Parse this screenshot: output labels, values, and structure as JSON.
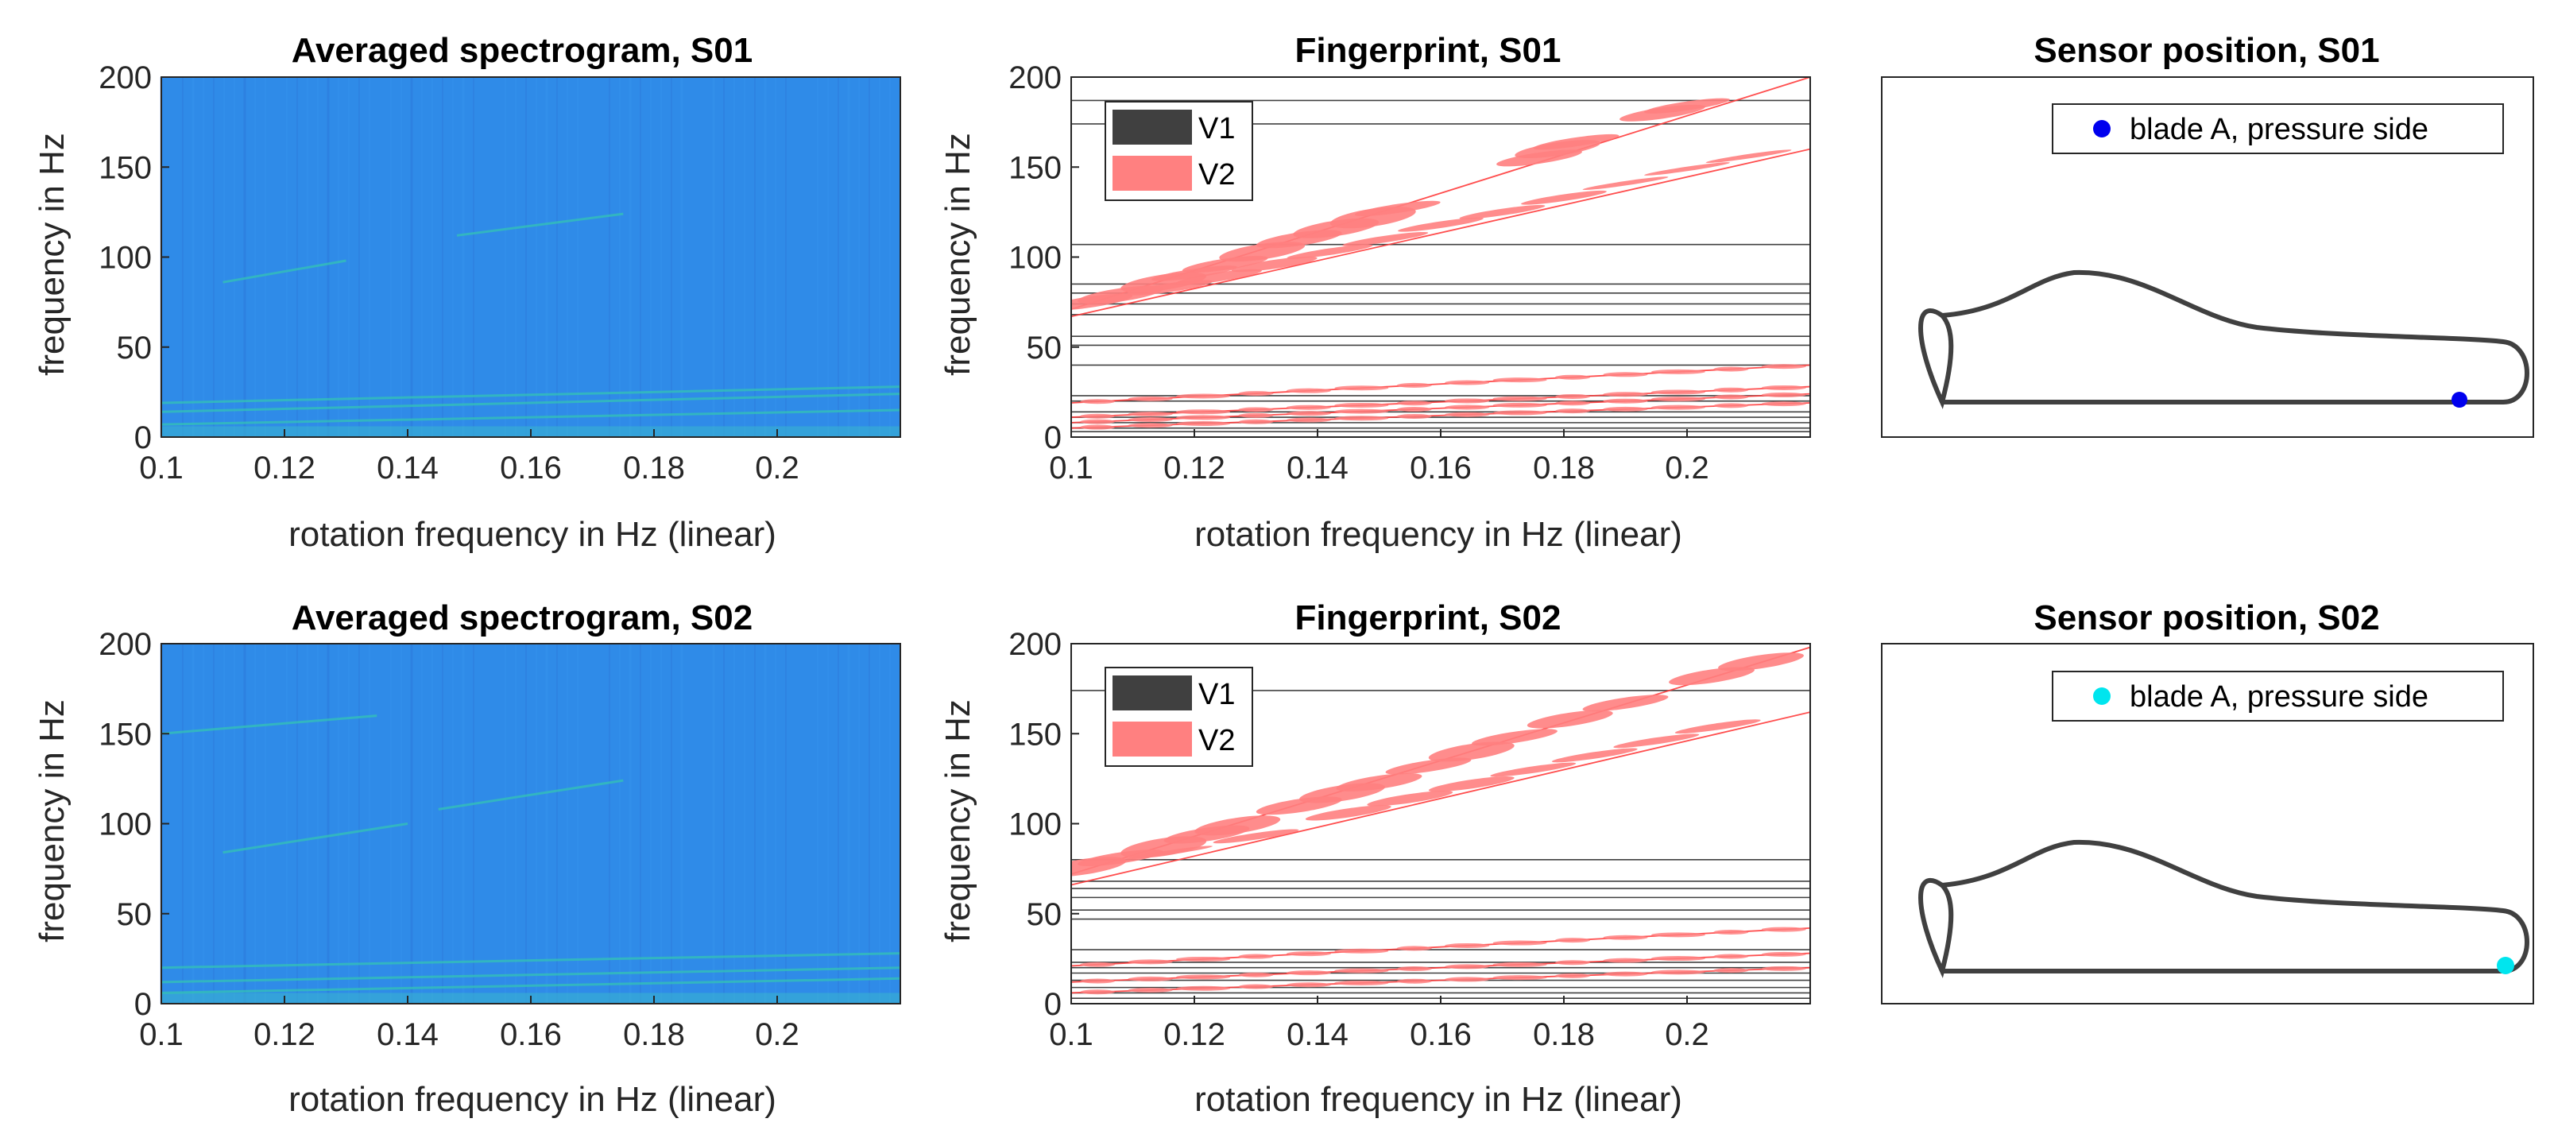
{
  "figure": {
    "colors": {
      "spectrogram_bg": "#2f8be8",
      "spectrogram_line": "#33c4b4",
      "axis": "#262626",
      "v1": "#404040",
      "v2": "#ff8080",
      "v2_line": "#ff3b3b",
      "blade": "#404040",
      "sensor_s01": "#0000ee",
      "sensor_s02": "#00e5ee"
    }
  },
  "chart_data": [
    {
      "id": "spec-s01",
      "type": "heatmap",
      "title": "Averaged spectrogram, S01",
      "xlabel": "rotation frequency in Hz (linear)",
      "ylabel": "frequency in Hz",
      "xlim": [
        0.1,
        0.22
      ],
      "ylim": [
        0,
        200
      ],
      "xticks": [
        "0.1",
        "0.12",
        "0.14",
        "0.16",
        "0.18",
        "0.2"
      ],
      "xtick_values": [
        0.1,
        0.12,
        0.14,
        0.16,
        0.18,
        0.2
      ],
      "yticks": [
        "0",
        "50",
        "100",
        "150",
        "200"
      ],
      "ytick_values": [
        0,
        50,
        100,
        150,
        200
      ],
      "faint_lines": [
        {
          "x": [
            0.1,
            0.22
          ],
          "y": [
            7,
            15
          ]
        },
        {
          "x": [
            0.1,
            0.22
          ],
          "y": [
            14,
            24
          ]
        },
        {
          "x": [
            0.1,
            0.22
          ],
          "y": [
            19,
            28
          ]
        },
        {
          "x": [
            0.11,
            0.13
          ],
          "y": [
            86,
            98
          ]
        },
        {
          "x": [
            0.148,
            0.175
          ],
          "y": [
            112,
            124
          ]
        }
      ]
    },
    {
      "id": "fp-s01",
      "type": "scatter",
      "title": "Fingerprint, S01",
      "xlabel": "rotation frequency in Hz (linear)",
      "ylabel": "frequency in Hz",
      "xlim": [
        0.1,
        0.22
      ],
      "ylim": [
        0,
        200
      ],
      "xticks": [
        "0.1",
        "0.12",
        "0.14",
        "0.16",
        "0.18",
        "0.2"
      ],
      "xtick_values": [
        0.1,
        0.12,
        0.14,
        0.16,
        0.18,
        0.2
      ],
      "yticks": [
        "0",
        "50",
        "100",
        "150",
        "200"
      ],
      "ytick_values": [
        0,
        50,
        100,
        150,
        200
      ],
      "legend": [
        "V1",
        "V2"
      ],
      "v1_frequencies": [
        187,
        174,
        107,
        85,
        80,
        74,
        68,
        56,
        51,
        40,
        23,
        20,
        14,
        11,
        8,
        5,
        3
      ],
      "v2_lines": [
        {
          "x": [
            0.1,
            0.22
          ],
          "y": [
            71,
            200
          ]
        },
        {
          "x": [
            0.1,
            0.22
          ],
          "y": [
            67,
            160
          ]
        },
        {
          "x": [
            0.1,
            0.22
          ],
          "y": [
            19,
            40
          ]
        },
        {
          "x": [
            0.1,
            0.22
          ],
          "y": [
            11,
            28
          ]
        },
        {
          "x": [
            0.1,
            0.22
          ],
          "y": [
            8,
            24
          ]
        },
        {
          "x": [
            0.1,
            0.22
          ],
          "y": [
            5,
            19
          ]
        }
      ],
      "v2_blobs": [
        {
          "x": 0.103,
          "y": 75,
          "w": 5
        },
        {
          "x": 0.108,
          "y": 79,
          "w": 6
        },
        {
          "x": 0.115,
          "y": 86,
          "w": 7
        },
        {
          "x": 0.12,
          "y": 91,
          "w": 4
        },
        {
          "x": 0.125,
          "y": 96,
          "w": 5
        },
        {
          "x": 0.131,
          "y": 103,
          "w": 7
        },
        {
          "x": 0.137,
          "y": 110,
          "w": 6
        },
        {
          "x": 0.143,
          "y": 116,
          "w": 7
        },
        {
          "x": 0.149,
          "y": 122,
          "w": 8
        },
        {
          "x": 0.153,
          "y": 127,
          "w": 4
        },
        {
          "x": 0.176,
          "y": 155,
          "w": 5
        },
        {
          "x": 0.179,
          "y": 160,
          "w": 6
        },
        {
          "x": 0.182,
          "y": 164,
          "w": 4
        },
        {
          "x": 0.196,
          "y": 180,
          "w": 5
        },
        {
          "x": 0.2,
          "y": 184,
          "w": 4
        },
        {
          "x": 0.116,
          "y": 83,
          "w": 4
        },
        {
          "x": 0.124,
          "y": 89,
          "w": 4
        },
        {
          "x": 0.133,
          "y": 96,
          "w": 4
        },
        {
          "x": 0.142,
          "y": 103,
          "w": 3
        },
        {
          "x": 0.151,
          "y": 110,
          "w": 3
        },
        {
          "x": 0.16,
          "y": 118,
          "w": 3
        },
        {
          "x": 0.17,
          "y": 125,
          "w": 3
        },
        {
          "x": 0.18,
          "y": 133,
          "w": 3
        },
        {
          "x": 0.19,
          "y": 141,
          "w": 2
        },
        {
          "x": 0.2,
          "y": 149,
          "w": 2
        },
        {
          "x": 0.21,
          "y": 156,
          "w": 2
        }
      ]
    },
    {
      "id": "pos-s01",
      "type": "diagram",
      "title": "Sensor position, S01",
      "legend": "blade A, pressure side",
      "sensor": "s01"
    },
    {
      "id": "spec-s02",
      "type": "heatmap",
      "title": "Averaged spectrogram, S02",
      "xlabel": "rotation frequency in Hz (linear)",
      "ylabel": "frequency in Hz",
      "xlim": [
        0.1,
        0.22
      ],
      "ylim": [
        0,
        200
      ],
      "xticks": [
        "0.1",
        "0.12",
        "0.14",
        "0.16",
        "0.18",
        "0.2"
      ],
      "xtick_values": [
        0.1,
        0.12,
        0.14,
        0.16,
        0.18,
        0.2
      ],
      "yticks": [
        "0",
        "50",
        "100",
        "150",
        "200"
      ],
      "ytick_values": [
        0,
        50,
        100,
        150,
        200
      ],
      "faint_lines": [
        {
          "x": [
            0.1,
            0.22
          ],
          "y": [
            6,
            14
          ]
        },
        {
          "x": [
            0.1,
            0.22
          ],
          "y": [
            12,
            20
          ]
        },
        {
          "x": [
            0.1,
            0.22
          ],
          "y": [
            20,
            28
          ]
        },
        {
          "x": [
            0.1,
            0.135
          ],
          "y": [
            150,
            160
          ]
        },
        {
          "x": [
            0.11,
            0.14
          ],
          "y": [
            84,
            100
          ]
        },
        {
          "x": [
            0.145,
            0.175
          ],
          "y": [
            108,
            124
          ]
        }
      ]
    },
    {
      "id": "fp-s02",
      "type": "scatter",
      "title": "Fingerprint, S02",
      "xlabel": "rotation frequency in Hz (linear)",
      "ylabel": "frequency in Hz",
      "xlim": [
        0.1,
        0.22
      ],
      "ylim": [
        0,
        200
      ],
      "xticks": [
        "0.1",
        "0.12",
        "0.14",
        "0.16",
        "0.18",
        "0.2"
      ],
      "xtick_values": [
        0.1,
        0.12,
        0.14,
        0.16,
        0.18,
        0.2
      ],
      "yticks": [
        "0",
        "50",
        "100",
        "150",
        "200"
      ],
      "ytick_values": [
        0,
        50,
        100,
        150,
        200
      ],
      "legend": [
        "V1",
        "V2"
      ],
      "v1_frequencies": [
        174,
        80,
        68,
        64,
        59,
        52,
        47,
        30,
        23,
        20,
        17,
        13,
        9,
        6,
        3
      ],
      "v2_lines": [
        {
          "x": [
            0.1,
            0.22
          ],
          "y": [
            72,
            198
          ]
        },
        {
          "x": [
            0.1,
            0.22
          ],
          "y": [
            66,
            162
          ]
        },
        {
          "x": [
            0.1,
            0.22
          ],
          "y": [
            21,
            42
          ]
        },
        {
          "x": [
            0.1,
            0.22
          ],
          "y": [
            12,
            28
          ]
        },
        {
          "x": [
            0.1,
            0.22
          ],
          "y": [
            6,
            20
          ]
        }
      ],
      "v2_blobs": [
        {
          "x": 0.102,
          "y": 76,
          "w": 7
        },
        {
          "x": 0.108,
          "y": 81,
          "w": 5
        },
        {
          "x": 0.115,
          "y": 87,
          "w": 8
        },
        {
          "x": 0.122,
          "y": 94,
          "w": 6
        },
        {
          "x": 0.127,
          "y": 99,
          "w": 7
        },
        {
          "x": 0.137,
          "y": 110,
          "w": 6
        },
        {
          "x": 0.144,
          "y": 117,
          "w": 7
        },
        {
          "x": 0.15,
          "y": 123,
          "w": 6
        },
        {
          "x": 0.158,
          "y": 132,
          "w": 5
        },
        {
          "x": 0.165,
          "y": 140,
          "w": 7
        },
        {
          "x": 0.172,
          "y": 148,
          "w": 5
        },
        {
          "x": 0.181,
          "y": 158,
          "w": 6
        },
        {
          "x": 0.19,
          "y": 167,
          "w": 5
        },
        {
          "x": 0.204,
          "y": 182,
          "w": 6
        },
        {
          "x": 0.212,
          "y": 190,
          "w": 6
        },
        {
          "x": 0.116,
          "y": 84,
          "w": 2
        },
        {
          "x": 0.13,
          "y": 93,
          "w": 3
        },
        {
          "x": 0.145,
          "y": 106,
          "w": 4
        },
        {
          "x": 0.155,
          "y": 114,
          "w": 4
        },
        {
          "x": 0.165,
          "y": 122,
          "w": 4
        },
        {
          "x": 0.175,
          "y": 130,
          "w": 3
        },
        {
          "x": 0.185,
          "y": 138,
          "w": 3
        },
        {
          "x": 0.195,
          "y": 146,
          "w": 3
        },
        {
          "x": 0.205,
          "y": 154,
          "w": 3
        }
      ]
    },
    {
      "id": "pos-s02",
      "type": "diagram",
      "title": "Sensor position, S02",
      "legend": "blade A, pressure side",
      "sensor": "s02"
    }
  ]
}
